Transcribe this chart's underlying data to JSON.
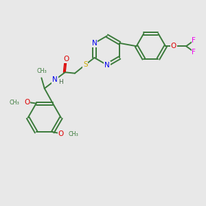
{
  "background_color": "#e8e8e8",
  "bond_color": "#3a7a3a",
  "N_color": "#0000ee",
  "O_color": "#dd0000",
  "S_color": "#ccaa00",
  "F_color": "#ee00ee",
  "H_color": "#446644",
  "figsize": [
    3.0,
    3.0
  ],
  "dpi": 100,
  "xlim": [
    0,
    10
  ],
  "ylim": [
    0,
    10
  ]
}
